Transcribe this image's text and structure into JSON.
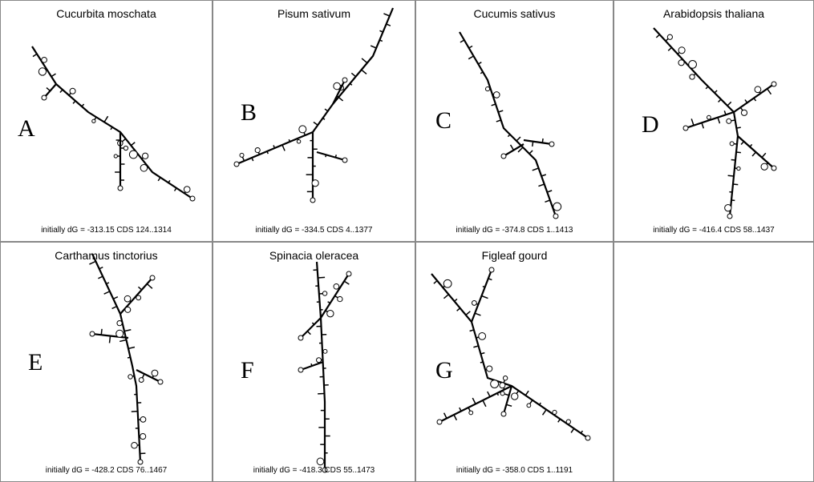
{
  "panels": [
    {
      "title": "Cucurbita moschata",
      "letter": "A",
      "caption": "initially dG = -313.15  CDS 124..1314"
    },
    {
      "title": "Pisum sativum",
      "letter": "B",
      "caption": "initially dG = -334.5  CDS 4..1377"
    },
    {
      "title": "Cucumis sativus",
      "letter": "C",
      "caption": "initially dG = -374.8  CDS 1..1413"
    },
    {
      "title": "Arabidopsis thaliana",
      "letter": "D",
      "caption": "initially dG = -416.4  CDS 58..1437"
    },
    {
      "title": "Carthamus tinctorius",
      "letter": "E",
      "caption": "initially dG = -428.2  CDS 76..1467"
    },
    {
      "title": "Spinacia oleracea",
      "letter": "F",
      "caption": "initially dG = -418.3  CDS 55..1473"
    },
    {
      "title": "Figleaf gourd",
      "letter": "G",
      "caption": "initially dG = -358.0  CDS 1..1191"
    }
  ]
}
